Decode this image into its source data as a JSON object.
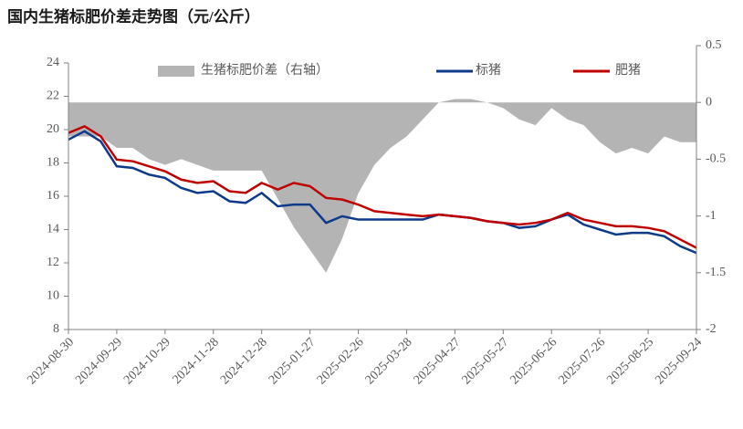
{
  "chart_data": {
    "type": "line",
    "title": "国内生猪标肥价差走势图（元/公斤）",
    "x": [
      "2024-08-30",
      "2024-09-09",
      "2024-09-19",
      "2024-09-29",
      "2024-10-09",
      "2024-10-19",
      "2024-10-29",
      "2024-11-08",
      "2024-11-18",
      "2024-11-28",
      "2024-12-08",
      "2024-12-18",
      "2024-12-28",
      "2025-01-07",
      "2025-01-17",
      "2025-01-27",
      "2025-02-06",
      "2025-02-16",
      "2025-02-26",
      "2025-03-08",
      "2025-03-18",
      "2025-03-28",
      "2025-04-07",
      "2025-04-17",
      "2025-04-27",
      "2025-05-07",
      "2025-05-17",
      "2025-05-27",
      "2025-06-06",
      "2025-06-16",
      "2025-06-26",
      "2025-07-06",
      "2025-07-16",
      "2025-07-26",
      "2025-08-05",
      "2025-08-15",
      "2025-08-25",
      "2025-09-04",
      "2025-09-14",
      "2025-09-24"
    ],
    "xticks": [
      "2024-08-30",
      "2024-09-29",
      "2024-10-29",
      "2024-11-28",
      "2024-12-28",
      "2025-01-27",
      "2025-02-26",
      "2025-03-28",
      "2025-04-27",
      "2025-05-27",
      "2025-06-26",
      "2025-07-26",
      "2025-08-25",
      "2025-09-24"
    ],
    "series": [
      {
        "name": "生猪标肥价差（右轴）",
        "color": "#b4b4b4",
        "axis": "y2",
        "kind": "area",
        "values": [
          -0.3,
          -0.3,
          -0.3,
          -0.4,
          -0.4,
          -0.5,
          -0.55,
          -0.5,
          -0.55,
          -0.6,
          -0.6,
          -0.6,
          -0.6,
          -0.85,
          -1.1,
          -1.3,
          -1.5,
          -1.2,
          -0.8,
          -0.55,
          -0.4,
          -0.3,
          -0.15,
          0.0,
          0.03,
          0.03,
          0.0,
          -0.05,
          -0.15,
          -0.2,
          -0.05,
          -0.15,
          -0.2,
          -0.35,
          -0.45,
          -0.4,
          -0.45,
          -0.3,
          -0.35,
          -0.35
        ]
      },
      {
        "name": "标猪",
        "color": "#0d3a8a",
        "values": [
          19.4,
          19.9,
          19.3,
          17.8,
          17.7,
          17.3,
          17.1,
          16.5,
          16.2,
          16.3,
          15.7,
          15.6,
          16.2,
          15.4,
          15.5,
          15.5,
          14.4,
          14.8,
          14.6,
          14.6,
          14.6,
          14.6,
          14.6,
          14.9,
          14.8,
          14.7,
          14.5,
          14.4,
          14.1,
          14.2,
          14.6,
          14.9,
          14.3,
          14.0,
          13.7,
          13.8,
          13.8,
          13.6,
          13.0,
          12.6
        ]
      },
      {
        "name": "肥猪",
        "color": "#c00000",
        "values": [
          19.8,
          20.2,
          19.6,
          18.2,
          18.1,
          17.8,
          17.5,
          17.0,
          16.8,
          16.9,
          16.3,
          16.2,
          16.8,
          16.4,
          16.8,
          16.6,
          15.9,
          15.8,
          15.5,
          15.1,
          15.0,
          14.9,
          14.8,
          14.9,
          14.8,
          14.7,
          14.5,
          14.4,
          14.3,
          14.4,
          14.6,
          15.0,
          14.6,
          14.4,
          14.2,
          14.2,
          14.1,
          13.9,
          13.4,
          12.9
        ]
      }
    ],
    "ylim": [
      8,
      24
    ],
    "yticks": [
      8,
      10,
      12,
      14,
      16,
      18,
      20,
      22,
      24
    ],
    "y2lim": [
      -2,
      0.5
    ],
    "y2ticks": [
      -2,
      -1.5,
      -1,
      -0.5,
      0,
      0.5
    ]
  }
}
